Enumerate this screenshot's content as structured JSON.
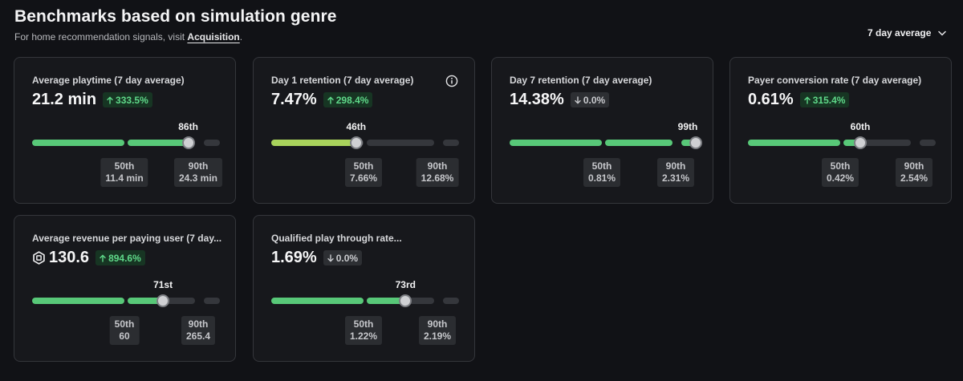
{
  "header": {
    "title": "Benchmarks based on simulation genre",
    "subtitle_prefix": "For home recommendation signals, visit ",
    "subtitle_link": "Acquisition",
    "subtitle_suffix": ".",
    "period_dropdown": "7 day average"
  },
  "colors": {
    "green_bar": "#58c878",
    "lime_bar": "#a9d35c",
    "gray_track": "#35373c",
    "delta_up_text": "#5fd889",
    "delta_up_bg": "#173523"
  },
  "cards": [
    {
      "title": "Average playtime (7 day average)",
      "value": "21.2 min",
      "delta": "333.5%",
      "delta_direction": "up",
      "percentile_label": "86th",
      "percentile": 86,
      "p50_label": "50th",
      "p50_value": "11.4 min",
      "p90_label": "90th",
      "p90_value": "24.3 min"
    },
    {
      "title": "Day 1 retention (7 day average)",
      "value": "7.47%",
      "delta": "298.4%",
      "delta_direction": "up",
      "percentile_label": "46th",
      "percentile": 46,
      "p50_label": "50th",
      "p50_value": "7.66%",
      "p90_label": "90th",
      "p90_value": "12.68%",
      "info_icon": "info-icon"
    },
    {
      "title": "Day 7 retention (7 day average)",
      "value": "14.38%",
      "delta": "0.0%",
      "delta_direction": "down",
      "percentile_label": "99th",
      "percentile": 99,
      "p50_label": "50th",
      "p50_value": "0.81%",
      "p90_label": "90th",
      "p90_value": "2.31%"
    },
    {
      "title": "Payer conversion rate (7 day average)",
      "value": "0.61%",
      "delta": "315.4%",
      "delta_direction": "up",
      "percentile_label": "60th",
      "percentile": 60,
      "p50_label": "50th",
      "p50_value": "0.42%",
      "p90_label": "90th",
      "p90_value": "2.54%"
    },
    {
      "title": "Average revenue per paying user (7 day...",
      "value": "130.6",
      "value_icon": "robux-icon",
      "delta": "894.6%",
      "delta_direction": "up",
      "percentile_label": "71st",
      "percentile": 71,
      "p50_label": "50th",
      "p50_value": "60",
      "p90_label": "90th",
      "p90_value": "265.4"
    },
    {
      "title": "Qualified play through rate...",
      "value": "1.69%",
      "delta": "0.0%",
      "delta_direction": "down",
      "percentile_label": "73rd",
      "percentile": 73,
      "p50_label": "50th",
      "p50_value": "1.22%",
      "p90_label": "90th",
      "p90_value": "2.19%"
    }
  ]
}
